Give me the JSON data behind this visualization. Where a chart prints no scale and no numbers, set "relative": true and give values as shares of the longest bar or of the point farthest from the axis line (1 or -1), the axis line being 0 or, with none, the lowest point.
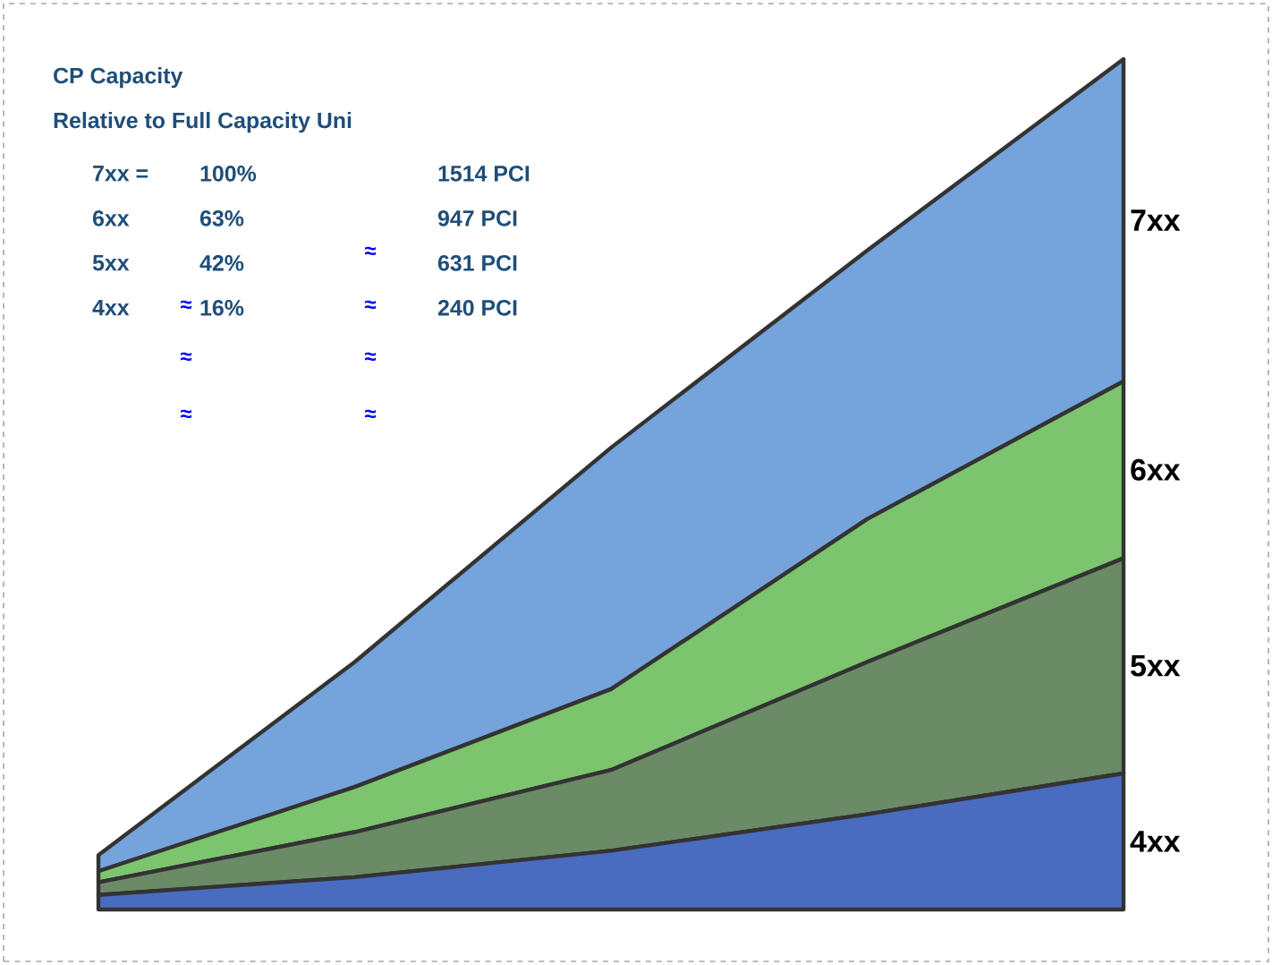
{
  "chart_data": {
    "type": "area",
    "stacked": true,
    "relative": true,
    "title": "CP Capacity",
    "subtitle": "Relative to Full Capacity Uni",
    "annotations": [
      "7xx =",
      "100%",
      "1514 PCI",
      "6xx",
      "63%",
      "947 PCI",
      "5xx",
      "42%",
      "631 PCI",
      "4xx",
      "16%",
      "240 PCI",
      "≈",
      "≈",
      "≈",
      "≈",
      "≈",
      "≈",
      "≈"
    ],
    "categories": [
      null,
      null,
      null,
      null,
      null
    ],
    "series": [
      {
        "name": "4xx",
        "color": "#4a6cc0",
        "values": [
          0.017,
          0.038,
          0.069,
          0.112,
          0.16
        ]
      },
      {
        "name": "5xx",
        "color": "#6b8a66",
        "values": [
          0.015,
          0.053,
          0.095,
          0.179,
          0.253
        ]
      },
      {
        "name": "6xx",
        "color": "#7cc46e",
        "values": [
          0.013,
          0.053,
          0.095,
          0.168,
          0.208
        ]
      },
      {
        "name": "7xx",
        "color": "#75a3dc",
        "values": [
          0.019,
          0.147,
          0.284,
          0.316,
          0.379
        ]
      }
    ]
  }
}
